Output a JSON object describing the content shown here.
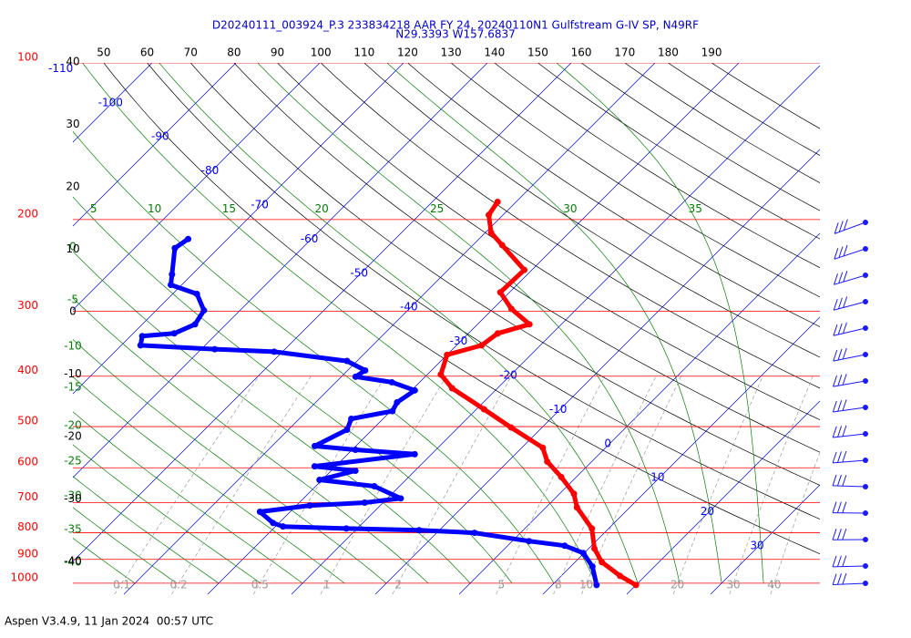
{
  "chart_data": {
    "type": "skewt",
    "title": "D20240111_003924_P.3 233834218 AAR FY 24, 20240110N1 Gulfstream G-IV SP, N49RF",
    "subtitle": "N29.3393 W157.6837",
    "ylim": [
      100,
      1050
    ],
    "ylog": true,
    "pressure_levels": [
      100,
      200,
      300,
      400,
      500,
      600,
      700,
      800,
      900,
      1000
    ],
    "pressure_color": "#ff0000",
    "isotherms": [
      -110,
      -100,
      -90,
      -80,
      -70,
      -60,
      -50,
      -40,
      -30,
      -20,
      -10,
      0,
      10,
      20,
      30
    ],
    "isotherm_color": "#0000ff",
    "dry_adiabats": [
      50,
      60,
      70,
      80,
      90,
      100,
      110,
      120,
      130,
      140,
      150,
      160,
      170,
      180,
      190
    ],
    "dry_adiabat_color": "#000000",
    "moist_adiabats_top": [
      5,
      10,
      15,
      20,
      25,
      30,
      35
    ],
    "moist_adiabats_left": [
      0,
      -5,
      -10,
      -15,
      -20,
      -25,
      -30,
      -35,
      -40
    ],
    "moist_adiabat_color": "#008000",
    "mixing_ratios": [
      0.1,
      0.2,
      0.5,
      1,
      2,
      5,
      8,
      10,
      20,
      30,
      40
    ],
    "mixing_ratio_color": "#999999",
    "left_labels": [
      40,
      30,
      20,
      10,
      0,
      -10,
      -20,
      -30,
      -40
    ],
    "series": [
      {
        "color": "#ff0000",
        "pressure": [
          185,
          196,
          212,
          224,
          250,
          276,
          297,
          318,
          331,
          349,
          364,
          397,
          422,
          463,
          502,
          549,
          584,
          625,
          673,
          715,
          785,
          858,
          911,
          968,
          1008
        ],
        "values": [
          -42.2,
          -41.7,
          -39.3,
          -36.5,
          -30.9,
          -31.1,
          -27.8,
          -23.8,
          -26.5,
          -27,
          -30,
          -28.4,
          -25.4,
          -19.1,
          -13.7,
          -7.5,
          -5.3,
          -1.8,
          1.7,
          3.7,
          8,
          10.7,
          13.2,
          17,
          20
        ]
      },
      {
        "color": "#0000ff",
        "pressure": [
          218,
          227,
          255,
          267,
          278,
          299,
          318,
          331,
          335,
          349,
          355,
          359,
          374,
          390,
          401,
          411,
          426,
          449,
          467,
          483,
          507,
          545,
          554,
          565,
          596,
          608,
          633,
          651,
          687,
          700,
          709,
          729,
          766,
          778,
          785,
          791,
          800,
          830,
          847,
          875,
          929,
          1008
        ],
        "values": [
          -74.7,
          -75.2,
          -72.4,
          -71.3,
          -67.1,
          -64.3,
          -63.7,
          -65.1,
          -68.6,
          -67.7,
          -58.4,
          -51,
          -41.2,
          -37.9,
          -38.3,
          -33.3,
          -29.6,
          -30.3,
          -29.8,
          -33.8,
          -33,
          -34.9,
          -29.6,
          -22,
          -32.5,
          -27.1,
          -30.3,
          -23,
          -18.4,
          -22.2,
          -28.4,
          -33.6,
          -30.7,
          -29.1,
          -21.3,
          -12.4,
          -5.5,
          2,
          6.8,
          9.9,
          12.6,
          15.3
        ]
      }
    ]
  },
  "footer": "Aspen V3.4.9, 11 Jan 2024  00:57 UTC"
}
